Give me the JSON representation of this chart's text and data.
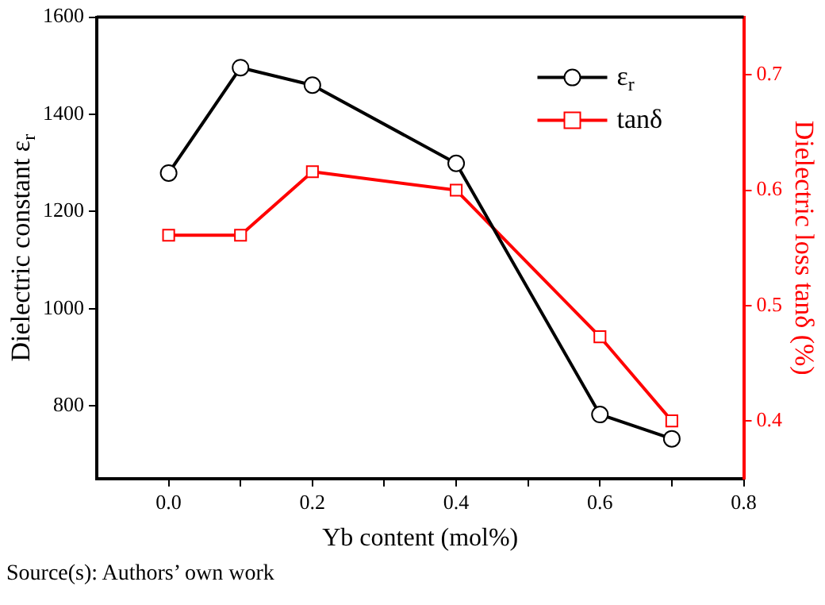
{
  "chart_data": {
    "type": "line",
    "xlabel": "Yb content (mol%)",
    "ylabel": "Dielectric constant ε$_{r}$",
    "y2label": "Dielectric loss tanδ (%)",
    "x": [
      0.0,
      0.1,
      0.2,
      0.4,
      0.6,
      0.7
    ],
    "series": [
      {
        "name": "ε$_{r}$",
        "color": "#000000",
        "marker": "circle",
        "values": [
          1279,
          1496,
          1460,
          1299,
          782,
          732
        ]
      },
      {
        "name": "tanδ",
        "color": "#ff0000",
        "marker": "square",
        "axis": "y2",
        "values": [
          0.561,
          0.561,
          0.616,
          0.6,
          0.473,
          0.4
        ]
      }
    ],
    "xlim": [
      -0.1,
      0.8
    ],
    "xticks": [
      {
        "value": 0,
        "label": "0.0"
      },
      {
        "value": 0.1,
        "label": null
      },
      0.2,
      {
        "value": 0.3,
        "label": null
      },
      0.4,
      {
        "value": 0.5,
        "label": null
      },
      0.6,
      {
        "value": 0.7,
        "label": null
      },
      0.8
    ],
    "ylim": [
      650,
      1600
    ],
    "yticks": [
      800,
      1000,
      1200,
      1400,
      1600
    ],
    "y2lim": [
      0.35,
      0.75
    ],
    "y2ticks": [
      0.4,
      0.5,
      0.6,
      0.7
    ],
    "grid": false,
    "legend": "top right",
    "line_style": "solid",
    "annotations": [
      "Source(s): Authors’ own work"
    ]
  }
}
